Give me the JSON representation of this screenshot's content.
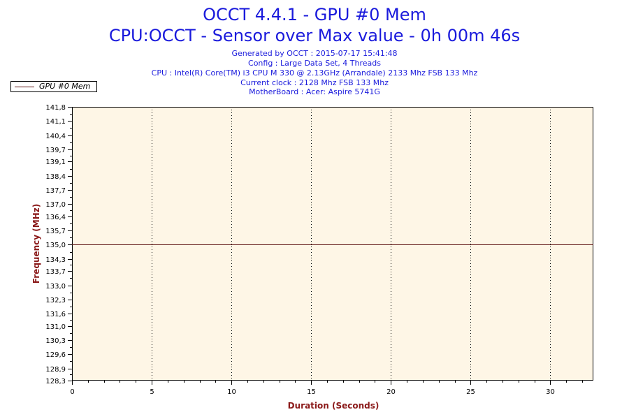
{
  "chart_data": {
    "type": "line",
    "title": "OCCT 4.4.1 - GPU #0 Mem",
    "subtitle": "CPU:OCCT - Sensor over Max value - 0h 00m 46s",
    "info_lines": [
      "Generated by OCCT : 2015-07-17 15:41:48",
      "Config : Large Data Set, 4 Threads",
      "CPU : Intel(R) Core(TM) i3 CPU M 330 @ 2.13GHz (Arrandale) 2133 Mhz FSB 133 Mhz",
      "Current clock : 2128 Mhz FSB 133 Mhz",
      "MotherBoard : Acer: Aspire 5741G"
    ],
    "xlabel": "Duration (Seconds)",
    "ylabel": "Frequency (MHz)",
    "xlim": [
      0,
      32.7
    ],
    "ylim": [
      128.3,
      141.8
    ],
    "x_ticks": [
      "0",
      "5",
      "10",
      "15",
      "20",
      "25",
      "30"
    ],
    "x_tick_values": [
      0,
      5,
      10,
      15,
      20,
      25,
      30
    ],
    "y_ticks": [
      "128,3",
      "128,9",
      "129,6",
      "130,3",
      "131,0",
      "131,6",
      "132,3",
      "133,0",
      "133,7",
      "134,3",
      "135,0",
      "135,7",
      "136,4",
      "137,0",
      "137,7",
      "138,4",
      "139,1",
      "139,7",
      "140,4",
      "141,1",
      "141,8"
    ],
    "y_tick_values": [
      128.3,
      128.9,
      129.6,
      130.3,
      131.0,
      131.6,
      132.3,
      133.0,
      133.7,
      134.3,
      135.0,
      135.7,
      136.4,
      137.0,
      137.7,
      138.4,
      139.1,
      139.7,
      140.4,
      141.1,
      141.8
    ],
    "grid": true,
    "legend_position": "top-left",
    "series": [
      {
        "name": "GPU #0 Mem",
        "color": "#5c1010",
        "x": [
          0,
          32.7
        ],
        "y": [
          135.0,
          135.0
        ]
      }
    ],
    "colors": {
      "title": "#1a1adc",
      "axis_label": "#8b1a1a",
      "plot_background": "#fef6e6"
    }
  }
}
